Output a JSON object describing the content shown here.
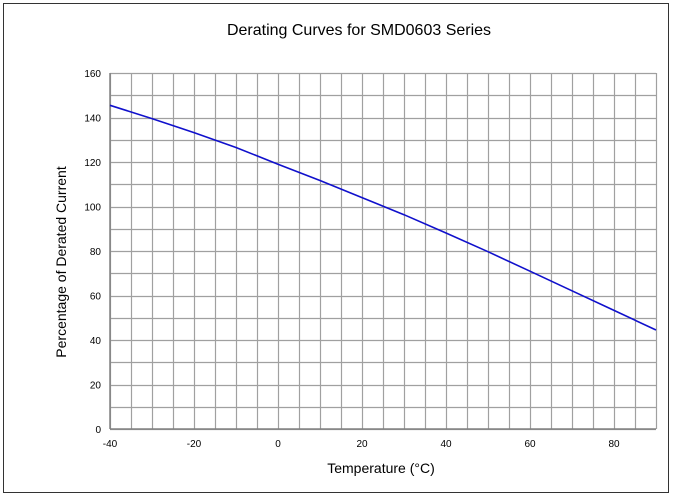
{
  "chart_data": {
    "type": "line",
    "title": "Derating Curves for SMD0603 Series",
    "xlabel": "Temperature (°C)",
    "ylabel": "Percentage of Derated Current",
    "xlim": [
      -40,
      90
    ],
    "ylim": [
      0,
      160
    ],
    "x_ticks": [
      -40,
      -20,
      0,
      20,
      40,
      60,
      80
    ],
    "x_tick_labels": [
      "-40",
      "-20",
      "0",
      "20",
      "40",
      "60",
      "80"
    ],
    "y_ticks": [
      0,
      20,
      40,
      60,
      80,
      100,
      120,
      140,
      160
    ],
    "y_tick_labels": [
      "0",
      "20",
      "40",
      "60",
      "80",
      "100",
      "120",
      "140",
      "160"
    ],
    "x_minor_step": 5,
    "y_minor_step": 10,
    "grid": true,
    "legend": false,
    "series": [
      {
        "x": [
          -40,
          -30,
          -20,
          -10,
          0,
          10,
          20,
          30,
          40,
          50,
          60,
          70,
          80,
          90
        ],
        "values": [
          145.5,
          139.5,
          133.2,
          126.5,
          119.0,
          111.7,
          104.0,
          96.3,
          88.1,
          79.7,
          70.9,
          62.1,
          53.3,
          44.5
        ],
        "color": "#1010cc"
      }
    ]
  },
  "colors": {
    "grid": "#a0a0a0",
    "axis": "#808080",
    "line": "#1010cc"
  }
}
